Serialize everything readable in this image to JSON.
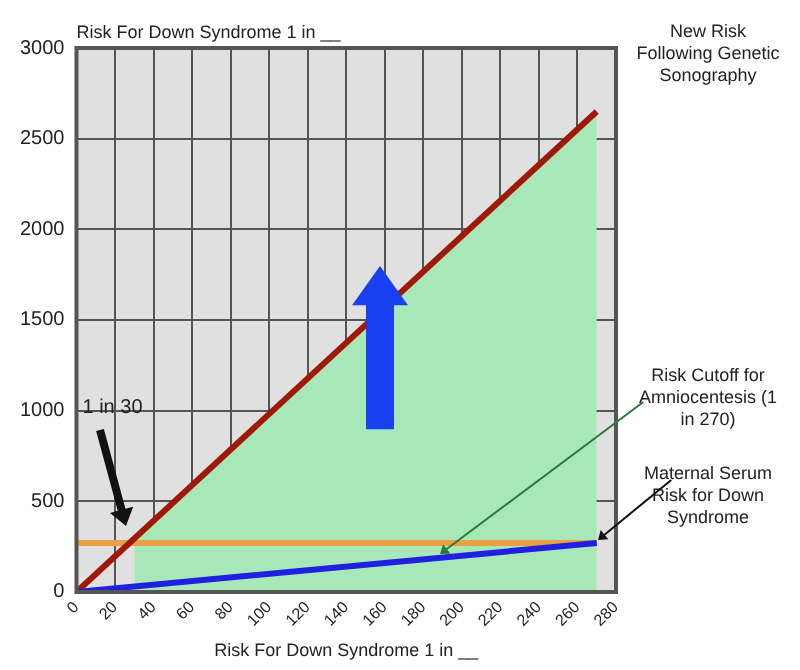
{
  "chart_data": {
    "type": "line",
    "ylabel": "Risk For Down Syndrome 1 in __",
    "xlabel": "Risk For Down Syndrome 1 in __",
    "xlim": [
      0,
      280
    ],
    "xticks": [
      0,
      20,
      40,
      60,
      80,
      100,
      120,
      140,
      160,
      180,
      200,
      220,
      240,
      260,
      280
    ],
    "ylim": [
      0,
      3000
    ],
    "yticks": [
      0,
      500,
      1000,
      1500,
      2000,
      2500,
      3000
    ],
    "grid": true,
    "marker": "none",
    "line_style": "solid",
    "series": [
      {
        "type": "area",
        "color": "#a8e8b8",
        "x": [
          30,
          270
        ],
        "values": [
          290,
          2650
        ]
      },
      {
        "name": "Risk Cutoff for Amniocentesis (1 in 270)",
        "color": "#e8a040",
        "x": [
          0,
          270
        ],
        "values": [
          270,
          270
        ]
      },
      {
        "name": "New Risk Following Genetic Sonography",
        "color": "#a01808",
        "x": [
          0,
          270
        ],
        "values": [
          0,
          2650
        ]
      },
      {
        "name": "Maternal Serum Risk for Down Syndrome",
        "color": "#2020e0",
        "x": [
          0,
          270
        ],
        "values": [
          0,
          270
        ]
      }
    ],
    "annotations": [
      "1 in 30"
    ]
  }
}
